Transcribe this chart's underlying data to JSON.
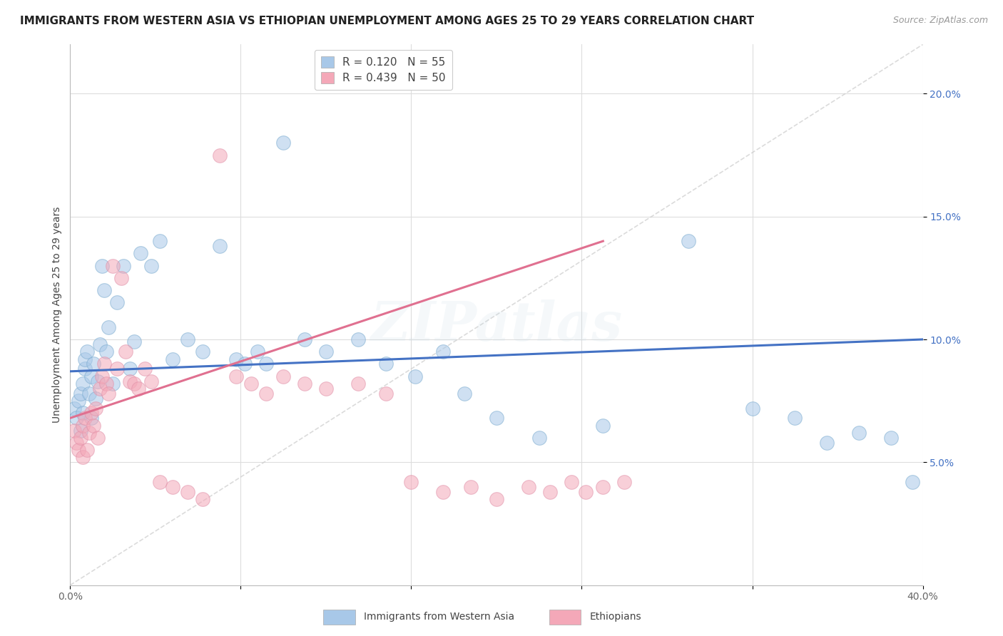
{
  "title": "IMMIGRANTS FROM WESTERN ASIA VS ETHIOPIAN UNEMPLOYMENT AMONG AGES 25 TO 29 YEARS CORRELATION CHART",
  "source": "Source: ZipAtlas.com",
  "ylabel": "Unemployment Among Ages 25 to 29 years",
  "legend1_R": "0.120",
  "legend1_N": "55",
  "legend2_R": "0.439",
  "legend2_N": "50",
  "legend_color1": "#A8C8E8",
  "legend_color2": "#F4A8B8",
  "watermark": "ZIPatlas",
  "blue_R": 0.12,
  "blue_N": 55,
  "pink_R": 0.439,
  "pink_N": 50,
  "background_color": "#FFFFFF",
  "plot_bg_color": "#FFFFFF",
  "grid_color": "#DDDDDD",
  "blue_color": "#A8C8E8",
  "pink_color": "#F4A8B8",
  "blue_line_color": "#4472C4",
  "pink_line_color": "#E07090",
  "diag_color": "#CCCCCC",
  "title_fontsize": 11,
  "source_fontsize": 9,
  "legend_fontsize": 11,
  "axis_label_fontsize": 10,
  "watermark_fontsize": 55,
  "watermark_alpha": 0.18,
  "xlim": [
    0.0,
    0.4
  ],
  "ylim": [
    0.0,
    0.22
  ],
  "y_ticks": [
    0.05,
    0.1,
    0.15,
    0.2
  ],
  "y_tick_labels": [
    "5.0%",
    "10.0%",
    "15.0%",
    "20.0%"
  ],
  "x_ticks": [
    0.0,
    0.08,
    0.16,
    0.24,
    0.32,
    0.4
  ],
  "x_tick_labels": [
    "0.0%",
    "",
    "",
    "",
    "",
    "40.0%"
  ],
  "blue_scatter_x": [
    0.002,
    0.003,
    0.004,
    0.005,
    0.005,
    0.006,
    0.006,
    0.007,
    0.007,
    0.008,
    0.009,
    0.01,
    0.01,
    0.011,
    0.012,
    0.013,
    0.014,
    0.015,
    0.016,
    0.017,
    0.018,
    0.02,
    0.022,
    0.025,
    0.028,
    0.03,
    0.033,
    0.038,
    0.042,
    0.048,
    0.055,
    0.062,
    0.07,
    0.078,
    0.082,
    0.088,
    0.092,
    0.1,
    0.11,
    0.12,
    0.135,
    0.148,
    0.162,
    0.175,
    0.185,
    0.2,
    0.22,
    0.25,
    0.29,
    0.32,
    0.34,
    0.355,
    0.37,
    0.385,
    0.395
  ],
  "blue_scatter_y": [
    0.072,
    0.068,
    0.075,
    0.063,
    0.078,
    0.082,
    0.07,
    0.088,
    0.092,
    0.095,
    0.078,
    0.085,
    0.068,
    0.09,
    0.076,
    0.083,
    0.098,
    0.13,
    0.12,
    0.095,
    0.105,
    0.082,
    0.115,
    0.13,
    0.088,
    0.099,
    0.135,
    0.13,
    0.14,
    0.092,
    0.1,
    0.095,
    0.138,
    0.092,
    0.09,
    0.095,
    0.09,
    0.18,
    0.1,
    0.095,
    0.1,
    0.09,
    0.085,
    0.095,
    0.078,
    0.068,
    0.06,
    0.065,
    0.14,
    0.072,
    0.068,
    0.058,
    0.062,
    0.06,
    0.042
  ],
  "pink_scatter_x": [
    0.002,
    0.003,
    0.004,
    0.005,
    0.006,
    0.006,
    0.007,
    0.008,
    0.009,
    0.01,
    0.011,
    0.012,
    0.013,
    0.014,
    0.015,
    0.016,
    0.017,
    0.018,
    0.02,
    0.022,
    0.024,
    0.026,
    0.028,
    0.03,
    0.032,
    0.035,
    0.038,
    0.042,
    0.048,
    0.055,
    0.062,
    0.07,
    0.078,
    0.085,
    0.092,
    0.1,
    0.11,
    0.12,
    0.135,
    0.148,
    0.16,
    0.175,
    0.188,
    0.2,
    0.215,
    0.225,
    0.235,
    0.242,
    0.25,
    0.26
  ],
  "pink_scatter_y": [
    0.063,
    0.058,
    0.055,
    0.06,
    0.065,
    0.052,
    0.068,
    0.055,
    0.062,
    0.07,
    0.065,
    0.072,
    0.06,
    0.08,
    0.085,
    0.09,
    0.082,
    0.078,
    0.13,
    0.088,
    0.125,
    0.095,
    0.083,
    0.082,
    0.08,
    0.088,
    0.083,
    0.042,
    0.04,
    0.038,
    0.035,
    0.175,
    0.085,
    0.082,
    0.078,
    0.085,
    0.082,
    0.08,
    0.082,
    0.078,
    0.042,
    0.038,
    0.04,
    0.035,
    0.04,
    0.038,
    0.042,
    0.038,
    0.04,
    0.042
  ]
}
